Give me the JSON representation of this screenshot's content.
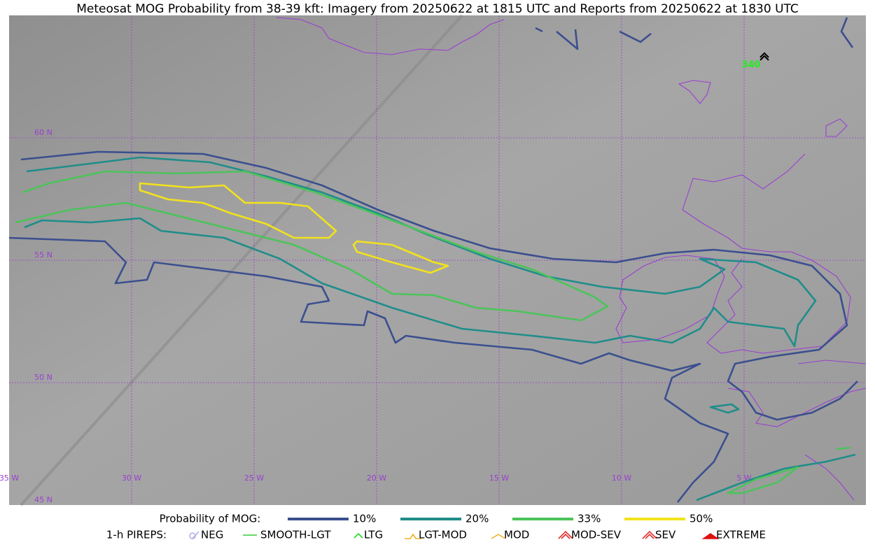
{
  "title": "Meteosat MOG Probability from 38-39 kft: Imagery from 20250622 at 1815 UTC and Reports from 20250622 at 1830 UTC",
  "lat_labels": [
    "60 N",
    "55 N",
    "50 N",
    "45 N"
  ],
  "lon_labels": [
    "35 W",
    "30 W",
    "25 W",
    "20 W",
    "15 W",
    "10 W",
    "5 W"
  ],
  "legend": {
    "label": "Probability of MOG:",
    "levels": [
      {
        "label": "10%",
        "color": "#3b4f8f"
      },
      {
        "label": "20%",
        "color": "#1f8d8a"
      },
      {
        "label": "33%",
        "color": "#4cc35a"
      },
      {
        "label": "50%",
        "color": "#f2e21c"
      }
    ]
  },
  "pireps": {
    "label": "1-h PIREPS:",
    "types": [
      {
        "label": "NEG",
        "color": "#b0b0f0"
      },
      {
        "label": "SMOOTH-LGT",
        "color": "#33cc33"
      },
      {
        "label": "LTG",
        "color": "#22dd22"
      },
      {
        "label": "LGT-MOD",
        "color": "#f0b020"
      },
      {
        "label": "MOD",
        "color": "#f0b020"
      },
      {
        "label": "MOD-SEV",
        "color": "#e03030"
      },
      {
        "label": "SEV",
        "color": "#e03030"
      },
      {
        "label": "EXTREME",
        "color": "#e01010"
      }
    ]
  },
  "reports": [
    {
      "label": "340"
    }
  ]
}
